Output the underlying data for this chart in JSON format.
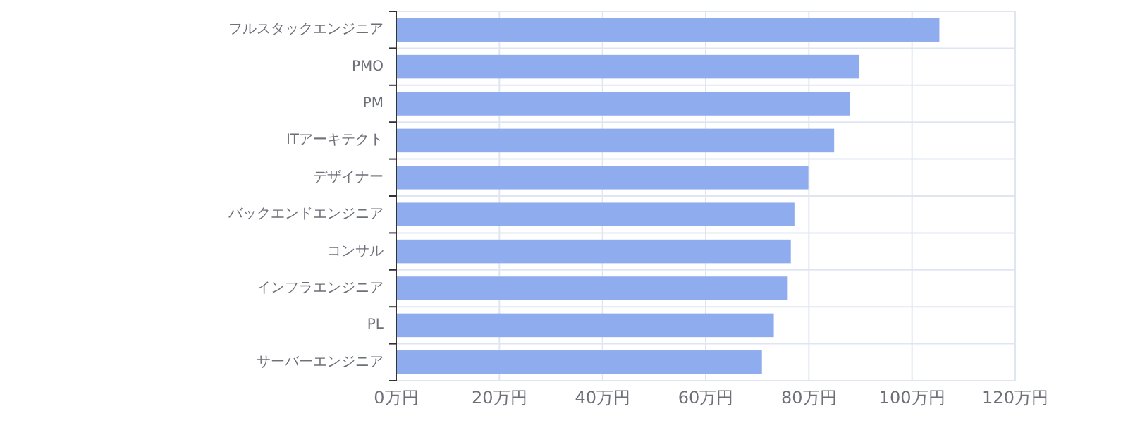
{
  "chart_data": {
    "type": "bar",
    "orientation": "horizontal",
    "categories": [
      "フルスタックエンジニア",
      "PMO",
      "PM",
      "ITアーキテクト",
      "デザイナー",
      "バックエンドエンジニア",
      "コンサル",
      "インフラエンジニア",
      "PL",
      "サーバーエンジニア"
    ],
    "values": [
      105.3,
      89.8,
      88.0,
      84.9,
      79.9,
      77.2,
      76.5,
      75.9,
      73.2,
      70.9
    ],
    "color": "#8fadee",
    "xlim": [
      0,
      120
    ],
    "xticks": [
      {
        "value": 0,
        "label": "0万円"
      },
      {
        "value": 20,
        "label": "20万円"
      },
      {
        "value": 40,
        "label": "40万円"
      },
      {
        "value": 60,
        "label": "60万円"
      },
      {
        "value": 80,
        "label": "80万円"
      },
      {
        "value": 100,
        "label": "100万円"
      },
      {
        "value": 120,
        "label": "120万円"
      }
    ],
    "grid": true
  }
}
